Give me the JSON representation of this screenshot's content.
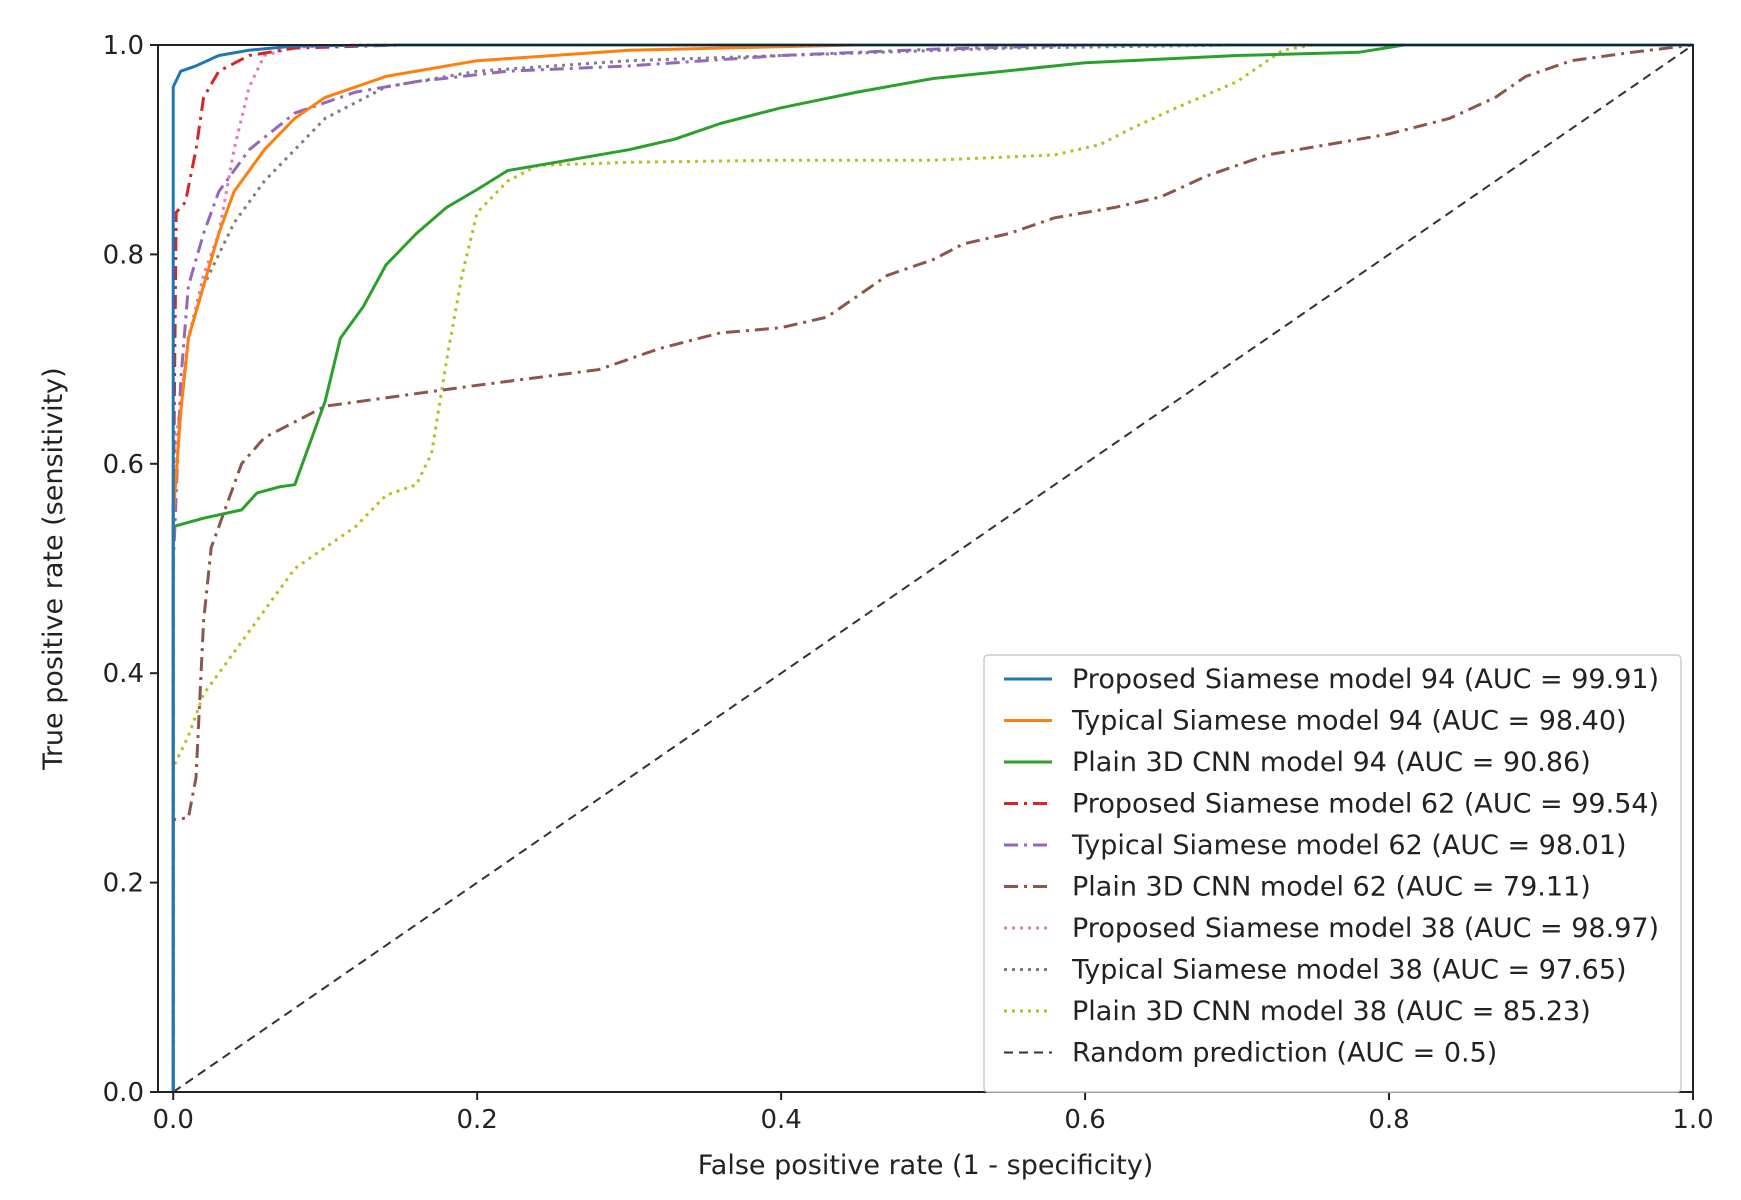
{
  "chart_data": {
    "type": "line",
    "title": "",
    "xlabel": "False positive rate (1 - specificity)",
    "ylabel": "True positive rate (sensitivity)",
    "xlim": [
      -0.01,
      1.0
    ],
    "ylim": [
      0.0,
      1.0
    ],
    "xticks": [
      0.0,
      0.2,
      0.4,
      0.6,
      0.8,
      1.0
    ],
    "xtick_labels": [
      "0.0",
      "0.2",
      "0.4",
      "0.6",
      "0.8",
      "1.0"
    ],
    "yticks": [
      0.0,
      0.2,
      0.4,
      0.6,
      0.8,
      1.0
    ],
    "ytick_labels": [
      "0.0",
      "0.2",
      "0.4",
      "0.6",
      "0.8",
      "1.0"
    ],
    "grid": false,
    "legend_position": "lower-right",
    "series": [
      {
        "name": "Proposed Siamese model 94 (AUC = 99.91)",
        "color": "#1f77b4",
        "dash": "solid",
        "points": [
          [
            0,
            0
          ],
          [
            0,
            0.96
          ],
          [
            0.005,
            0.975
          ],
          [
            0.015,
            0.98
          ],
          [
            0.03,
            0.99
          ],
          [
            0.05,
            0.995
          ],
          [
            0.08,
            0.999
          ],
          [
            0.15,
            1.0
          ],
          [
            1.0,
            1.0
          ]
        ]
      },
      {
        "name": "Typical Siamese model 94 (AUC = 98.40)",
        "color": "#ff7f0e",
        "dash": "solid",
        "points": [
          [
            0,
            0
          ],
          [
            0,
            0.55
          ],
          [
            0.005,
            0.65
          ],
          [
            0.01,
            0.72
          ],
          [
            0.02,
            0.77
          ],
          [
            0.03,
            0.82
          ],
          [
            0.04,
            0.86
          ],
          [
            0.06,
            0.9
          ],
          [
            0.08,
            0.93
          ],
          [
            0.1,
            0.95
          ],
          [
            0.14,
            0.97
          ],
          [
            0.2,
            0.985
          ],
          [
            0.3,
            0.995
          ],
          [
            0.45,
            1.0
          ],
          [
            1.0,
            1.0
          ]
        ]
      },
      {
        "name": "Plain 3D CNN model 94 (AUC = 90.86)",
        "color": "#2ca02c",
        "dash": "solid",
        "points": [
          [
            0,
            0
          ],
          [
            0,
            0.54
          ],
          [
            0.02,
            0.548
          ],
          [
            0.045,
            0.556
          ],
          [
            0.055,
            0.572
          ],
          [
            0.07,
            0.578
          ],
          [
            0.08,
            0.58
          ],
          [
            0.09,
            0.62
          ],
          [
            0.1,
            0.66
          ],
          [
            0.11,
            0.72
          ],
          [
            0.125,
            0.75
          ],
          [
            0.14,
            0.79
          ],
          [
            0.16,
            0.82
          ],
          [
            0.18,
            0.845
          ],
          [
            0.2,
            0.862
          ],
          [
            0.22,
            0.88
          ],
          [
            0.26,
            0.89
          ],
          [
            0.3,
            0.9
          ],
          [
            0.33,
            0.91
          ],
          [
            0.36,
            0.925
          ],
          [
            0.4,
            0.94
          ],
          [
            0.45,
            0.955
          ],
          [
            0.5,
            0.968
          ],
          [
            0.6,
            0.983
          ],
          [
            0.7,
            0.99
          ],
          [
            0.78,
            0.993
          ],
          [
            0.81,
            1.0
          ],
          [
            1.0,
            1.0
          ]
        ]
      },
      {
        "name": "Proposed Siamese model 62 (AUC = 99.54)",
        "color": "#d62728",
        "dash": "dashdot",
        "points": [
          [
            0,
            0
          ],
          [
            0,
            0.55
          ],
          [
            0.002,
            0.84
          ],
          [
            0.008,
            0.85
          ],
          [
            0.015,
            0.9
          ],
          [
            0.02,
            0.95
          ],
          [
            0.03,
            0.975
          ],
          [
            0.05,
            0.99
          ],
          [
            0.08,
            0.997
          ],
          [
            0.15,
            1.0
          ],
          [
            1.0,
            1.0
          ]
        ]
      },
      {
        "name": "Typical Siamese model 62 (AUC = 98.01)",
        "color": "#9467bd",
        "dash": "dashdot",
        "points": [
          [
            0,
            0
          ],
          [
            0,
            0.5
          ],
          [
            0.005,
            0.68
          ],
          [
            0.01,
            0.77
          ],
          [
            0.02,
            0.82
          ],
          [
            0.03,
            0.86
          ],
          [
            0.05,
            0.9
          ],
          [
            0.08,
            0.935
          ],
          [
            0.12,
            0.955
          ],
          [
            0.16,
            0.965
          ],
          [
            0.22,
            0.975
          ],
          [
            0.3,
            0.98
          ],
          [
            0.4,
            0.99
          ],
          [
            0.5,
            0.996
          ],
          [
            0.6,
            1.0
          ],
          [
            1.0,
            1.0
          ]
        ]
      },
      {
        "name": "Plain 3D CNN model 62 (AUC = 79.11)",
        "color": "#8c564b",
        "dash": "dashdot",
        "points": [
          [
            0,
            0
          ],
          [
            0,
            0.26
          ],
          [
            0.01,
            0.262
          ],
          [
            0.015,
            0.3
          ],
          [
            0.02,
            0.45
          ],
          [
            0.025,
            0.52
          ],
          [
            0.035,
            0.56
          ],
          [
            0.045,
            0.6
          ],
          [
            0.06,
            0.625
          ],
          [
            0.08,
            0.64
          ],
          [
            0.1,
            0.655
          ],
          [
            0.15,
            0.665
          ],
          [
            0.2,
            0.675
          ],
          [
            0.28,
            0.69
          ],
          [
            0.32,
            0.71
          ],
          [
            0.36,
            0.725
          ],
          [
            0.4,
            0.73
          ],
          [
            0.43,
            0.74
          ],
          [
            0.45,
            0.76
          ],
          [
            0.47,
            0.78
          ],
          [
            0.5,
            0.795
          ],
          [
            0.52,
            0.81
          ],
          [
            0.55,
            0.82
          ],
          [
            0.58,
            0.835
          ],
          [
            0.62,
            0.845
          ],
          [
            0.65,
            0.855
          ],
          [
            0.68,
            0.875
          ],
          [
            0.72,
            0.895
          ],
          [
            0.76,
            0.905
          ],
          [
            0.8,
            0.915
          ],
          [
            0.84,
            0.93
          ],
          [
            0.87,
            0.95
          ],
          [
            0.89,
            0.97
          ],
          [
            0.92,
            0.985
          ],
          [
            0.96,
            0.993
          ],
          [
            1.0,
            1.0
          ]
        ]
      },
      {
        "name": "Proposed Siamese model 38 (AUC = 98.97)",
        "color": "#e377c2",
        "dash": "dotted",
        "points": [
          [
            0,
            0
          ],
          [
            0,
            0.6
          ],
          [
            0.01,
            0.72
          ],
          [
            0.02,
            0.78
          ],
          [
            0.03,
            0.82
          ],
          [
            0.04,
            0.9
          ],
          [
            0.05,
            0.96
          ],
          [
            0.06,
            0.99
          ],
          [
            0.08,
            0.998
          ],
          [
            0.12,
            1.0
          ],
          [
            1.0,
            1.0
          ]
        ]
      },
      {
        "name": "Typical Siamese model 38 (AUC = 97.65)",
        "color": "#7f7f7f",
        "dash": "dotted",
        "points": [
          [
            0,
            0
          ],
          [
            0,
            0.55
          ],
          [
            0.005,
            0.65
          ],
          [
            0.01,
            0.72
          ],
          [
            0.02,
            0.77
          ],
          [
            0.04,
            0.83
          ],
          [
            0.06,
            0.87
          ],
          [
            0.08,
            0.9
          ],
          [
            0.1,
            0.93
          ],
          [
            0.14,
            0.96
          ],
          [
            0.2,
            0.975
          ],
          [
            0.3,
            0.985
          ],
          [
            0.4,
            0.99
          ],
          [
            0.55,
            0.997
          ],
          [
            0.7,
            1.0
          ],
          [
            1.0,
            1.0
          ]
        ]
      },
      {
        "name": "Plain 3D CNN model 38 (AUC = 85.23)",
        "color": "#bcbd22",
        "dash": "dotted",
        "points": [
          [
            0,
            0
          ],
          [
            0,
            0.31
          ],
          [
            0.01,
            0.34
          ],
          [
            0.02,
            0.38
          ],
          [
            0.04,
            0.42
          ],
          [
            0.06,
            0.46
          ],
          [
            0.08,
            0.5
          ],
          [
            0.1,
            0.52
          ],
          [
            0.12,
            0.54
          ],
          [
            0.14,
            0.57
          ],
          [
            0.16,
            0.58
          ],
          [
            0.17,
            0.61
          ],
          [
            0.18,
            0.7
          ],
          [
            0.19,
            0.78
          ],
          [
            0.2,
            0.84
          ],
          [
            0.22,
            0.87
          ],
          [
            0.24,
            0.885
          ],
          [
            0.3,
            0.888
          ],
          [
            0.4,
            0.89
          ],
          [
            0.5,
            0.89
          ],
          [
            0.58,
            0.895
          ],
          [
            0.61,
            0.905
          ],
          [
            0.63,
            0.92
          ],
          [
            0.66,
            0.94
          ],
          [
            0.7,
            0.965
          ],
          [
            0.73,
            0.995
          ],
          [
            0.75,
            1.0
          ],
          [
            1.0,
            1.0
          ]
        ]
      },
      {
        "name": "Random prediction (AUC = 0.5)",
        "color": "#333333",
        "dash": "dashed",
        "points": [
          [
            0,
            0
          ],
          [
            1,
            1
          ]
        ]
      }
    ]
  }
}
